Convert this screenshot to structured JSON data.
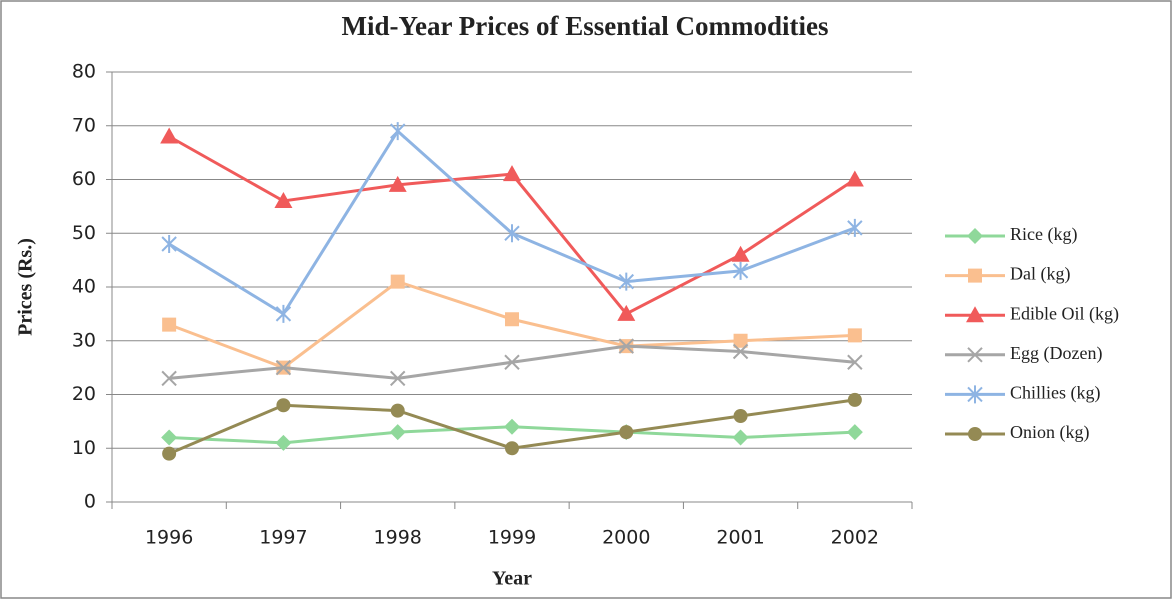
{
  "chart_data": {
    "type": "line",
    "title": "Mid-Year Prices of Essential Commodities",
    "x_label": "Year",
    "y_label": "Prices (Rs.)",
    "categories": [
      "1996",
      "1997",
      "1998",
      "1999",
      "2000",
      "2001",
      "2002"
    ],
    "series": [
      {
        "name": "Rice (kg)",
        "color": "#8fd89a",
        "marker": "diamond",
        "values": [
          12,
          11,
          13,
          14,
          13,
          12,
          13
        ]
      },
      {
        "name": "Dal (kg)",
        "color": "#fabf8f",
        "marker": "square",
        "values": [
          33,
          25,
          41,
          34,
          29,
          30,
          31
        ]
      },
      {
        "name": "Edible Oil (kg)",
        "color": "#f05a5a",
        "marker": "triangle",
        "values": [
          68,
          56,
          59,
          61,
          35,
          46,
          60
        ]
      },
      {
        "name": "Egg (Dozen)",
        "color": "#a6a6a6",
        "marker": "x",
        "values": [
          23,
          25,
          23,
          26,
          29,
          28,
          26
        ]
      },
      {
        "name": "Chillies (kg)",
        "color": "#8eb4e3",
        "marker": "star",
        "values": [
          48,
          35,
          69,
          50,
          41,
          43,
          51
        ]
      },
      {
        "name": "Onion (kg)",
        "color": "#948a54",
        "marker": "circle",
        "values": [
          9,
          18,
          17,
          10,
          13,
          16,
          19
        ]
      }
    ],
    "ylim": [
      0,
      80
    ],
    "yticks": [
      0,
      10,
      20,
      30,
      40,
      50,
      60,
      70,
      80
    ],
    "grid": true,
    "legend": "right"
  }
}
